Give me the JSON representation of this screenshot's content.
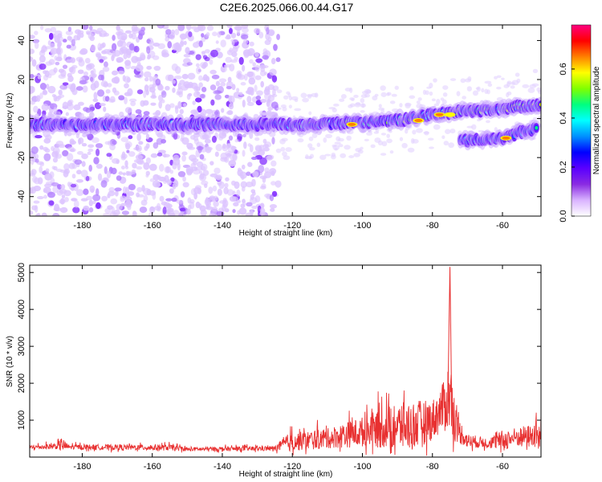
{
  "title": "C2E6.2025.066.00.44.G17",
  "chart_data": [
    {
      "type": "heatmap",
      "xlabel": "Height of straight line (km)",
      "ylabel": "Frequency (Hz)",
      "xlim": [
        -195,
        -49
      ],
      "ylim": [
        -50,
        48
      ],
      "x_ticks": [
        -180,
        -160,
        -140,
        -120,
        -100,
        -80,
        -60
      ],
      "y_ticks": [
        -40,
        -20,
        0,
        20,
        40
      ],
      "colorbar": {
        "label": "Normalized spectral amplitude",
        "ticks": [
          0.0,
          0.2,
          0.4,
          0.6
        ],
        "range": [
          0,
          0.78
        ],
        "colors": [
          "#ffffff",
          "#d9b3ff",
          "#8a2be2",
          "#5a00ff",
          "#0000ff",
          "#0090ff",
          "#00ffff",
          "#00ff80",
          "#80ff00",
          "#ffff00",
          "#ff8000",
          "#ff0000",
          "#ff0080"
        ]
      },
      "main_ridge": [
        {
          "x": -195,
          "y": -3
        },
        {
          "x": -170,
          "y": -3
        },
        {
          "x": -150,
          "y": -3
        },
        {
          "x": -130,
          "y": -3
        },
        {
          "x": -115,
          "y": -3
        },
        {
          "x": -100,
          "y": -2
        },
        {
          "x": -90,
          "y": -1
        },
        {
          "x": -80,
          "y": 2
        },
        {
          "x": -70,
          "y": 4
        },
        {
          "x": -60,
          "y": 5
        },
        {
          "x": -50,
          "y": 7
        }
      ],
      "secondary_ridge": [
        {
          "x": -72,
          "y": -11
        },
        {
          "x": -65,
          "y": -11
        },
        {
          "x": -60,
          "y": -10
        },
        {
          "x": -55,
          "y": -7
        },
        {
          "x": -50,
          "y": -5
        }
      ],
      "peak_marks": [
        {
          "x": -103,
          "y": -3,
          "amplitude": 0.72
        },
        {
          "x": -84,
          "y": -1,
          "amplitude": 0.7
        },
        {
          "x": -78,
          "y": 2,
          "amplitude": 0.72
        },
        {
          "x": -59,
          "y": -10,
          "amplitude": 0.74
        },
        {
          "x": -75,
          "y": 2,
          "amplitude": 0.65
        }
      ],
      "noise_region_x": [
        -195,
        -124
      ]
    },
    {
      "type": "line",
      "xlabel": "Height of straight line (km)",
      "ylabel": "SNR (10 * v/v)",
      "xlim": [
        -195,
        -49
      ],
      "ylim": [
        0,
        5200
      ],
      "x_ticks": [
        -180,
        -160,
        -140,
        -120,
        -100,
        -80,
        -60
      ],
      "y_ticks": [
        1000,
        2000,
        3000,
        4000,
        5000
      ],
      "color": "#e83030",
      "envelope": [
        {
          "x": -195,
          "base": 250,
          "amp": 220
        },
        {
          "x": -187,
          "base": 280,
          "amp": 300
        },
        {
          "x": -186,
          "base": 300,
          "amp": 750
        },
        {
          "x": -184,
          "base": 260,
          "amp": 250
        },
        {
          "x": -155,
          "base": 240,
          "amp": 300
        },
        {
          "x": -150,
          "base": 200,
          "amp": 200
        },
        {
          "x": -125,
          "base": 220,
          "amp": 250
        },
        {
          "x": -121,
          "base": 350,
          "amp": 900
        },
        {
          "x": -110,
          "base": 450,
          "amp": 1000
        },
        {
          "x": -100,
          "base": 600,
          "amp": 1500
        },
        {
          "x": -92,
          "base": 700,
          "amp": 2200
        },
        {
          "x": -86,
          "base": 700,
          "amp": 2500
        },
        {
          "x": -80,
          "base": 900,
          "amp": 2000
        },
        {
          "x": -77,
          "base": 1200,
          "amp": 2400
        },
        {
          "x": -75,
          "base": 1500,
          "amp": 3800
        },
        {
          "x": -73,
          "base": 700,
          "amp": 1400
        },
        {
          "x": -70,
          "base": 400,
          "amp": 700
        },
        {
          "x": -64,
          "base": 350,
          "amp": 500
        },
        {
          "x": -60,
          "base": 400,
          "amp": 1000
        },
        {
          "x": -55,
          "base": 500,
          "amp": 1000
        },
        {
          "x": -49,
          "base": 500,
          "amp": 1300
        }
      ]
    }
  ]
}
